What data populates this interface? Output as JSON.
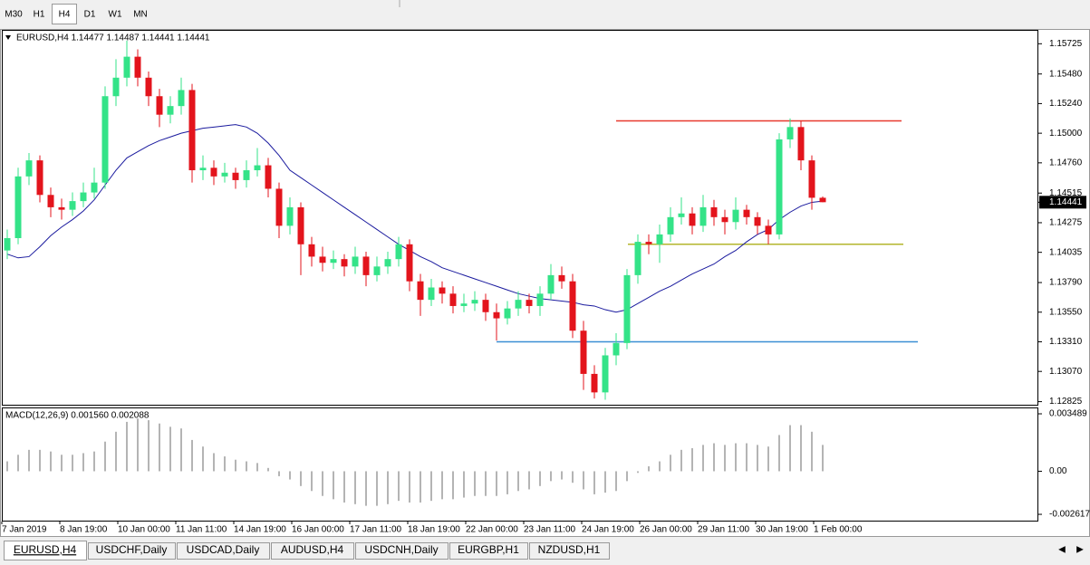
{
  "toolbar": {
    "timeframes": [
      "M30",
      "H1",
      "H4",
      "D1",
      "W1",
      "MN"
    ],
    "active": 2
  },
  "chart_data": {
    "type": "candlestick",
    "title": "EURUSD,H4  1.14477 1.14487 1.14441 1.14441",
    "up_color": "#34e388",
    "down_color": "#e3141c",
    "open": [
      1.1405,
      1.1415,
      1.1465,
      1.1478,
      1.145,
      1.144,
      1.1438,
      1.1445,
      1.1452,
      1.146,
      1.153,
      1.1545,
      1.1562,
      1.1545,
      1.153,
      1.1515,
      1.1522,
      1.1535,
      1.147,
      1.1472,
      1.1465,
      1.1468,
      1.1462,
      1.147,
      1.1474,
      1.1455,
      1.1425,
      1.144,
      1.141,
      1.14,
      1.1395,
      1.1398,
      1.1392,
      1.14,
      1.1385,
      1.1392,
      1.1398,
      1.141,
      1.138,
      1.1365,
      1.1375,
      1.137,
      1.136,
      1.1362,
      1.1365,
      1.1355,
      1.135,
      1.1358,
      1.1365,
      1.136,
      1.137,
      1.1385,
      1.138,
      1.134,
      1.1305,
      1.129,
      1.132,
      1.133,
      1.1385,
      1.1412,
      1.141,
      1.1418,
      1.1432,
      1.1435,
      1.1425,
      1.144,
      1.1432,
      1.1428,
      1.1438,
      1.1432,
      1.1425,
      1.1418,
      1.1495,
      1.1505,
      1.1478,
      1.14477
    ],
    "high": [
      1.1422,
      1.1472,
      1.1484,
      1.1482,
      1.1456,
      1.1447,
      1.1452,
      1.146,
      1.1472,
      1.1538,
      1.156,
      1.1575,
      1.1568,
      1.155,
      1.1536,
      1.153,
      1.1545,
      1.154,
      1.1482,
      1.1478,
      1.1476,
      1.1472,
      1.1478,
      1.1488,
      1.148,
      1.146,
      1.1448,
      1.1444,
      1.1416,
      1.1408,
      1.1405,
      1.1402,
      1.1408,
      1.1404,
      1.14,
      1.1404,
      1.1416,
      1.1414,
      1.1386,
      1.1382,
      1.138,
      1.1376,
      1.137,
      1.1372,
      1.137,
      1.1362,
      1.1364,
      1.1372,
      1.137,
      1.1376,
      1.1394,
      1.1392,
      1.1386,
      1.1348,
      1.1312,
      1.1326,
      1.1338,
      1.139,
      1.1418,
      1.1418,
      1.1426,
      1.144,
      1.1448,
      1.144,
      1.145,
      1.1446,
      1.1438,
      1.1448,
      1.1442,
      1.1436,
      1.143,
      1.15,
      1.1512,
      1.151,
      1.1482,
      1.14487
    ],
    "low": [
      1.1398,
      1.141,
      1.1458,
      1.1444,
      1.1432,
      1.143,
      1.1433,
      1.144,
      1.1447,
      1.1455,
      1.1522,
      1.1538,
      1.1538,
      1.1522,
      1.1505,
      1.1508,
      1.1515,
      1.146,
      1.1462,
      1.1458,
      1.146,
      1.1455,
      1.1456,
      1.1465,
      1.1448,
      1.1415,
      1.1418,
      1.1385,
      1.1392,
      1.1388,
      1.139,
      1.1384,
      1.1386,
      1.1376,
      1.138,
      1.1386,
      1.1392,
      1.1372,
      1.1352,
      1.136,
      1.1362,
      1.1354,
      1.1355,
      1.1356,
      1.1348,
      1.1332,
      1.1345,
      1.1352,
      1.1354,
      1.1352,
      1.1365,
      1.1374,
      1.1334,
      1.1292,
      1.1285,
      1.1284,
      1.1312,
      1.1325,
      1.1378,
      1.1402,
      1.1395,
      1.1412,
      1.1426,
      1.1418,
      1.142,
      1.1425,
      1.1418,
      1.1422,
      1.1426,
      1.1418,
      1.141,
      1.1414,
      1.1488,
      1.147,
      1.1438,
      1.14441
    ],
    "close": [
      1.1415,
      1.1465,
      1.1478,
      1.145,
      1.144,
      1.1438,
      1.1445,
      1.1452,
      1.146,
      1.153,
      1.1545,
      1.1562,
      1.1545,
      1.153,
      1.1515,
      1.1522,
      1.1535,
      1.147,
      1.1472,
      1.1465,
      1.1468,
      1.1462,
      1.147,
      1.1474,
      1.1455,
      1.1425,
      1.144,
      1.141,
      1.14,
      1.1395,
      1.1398,
      1.1392,
      1.14,
      1.1385,
      1.1392,
      1.1398,
      1.141,
      1.138,
      1.1365,
      1.1375,
      1.137,
      1.136,
      1.1362,
      1.1365,
      1.1355,
      1.135,
      1.1358,
      1.1365,
      1.136,
      1.137,
      1.1385,
      1.138,
      1.134,
      1.1305,
      1.129,
      1.132,
      1.133,
      1.1385,
      1.1412,
      1.141,
      1.1418,
      1.1432,
      1.1435,
      1.1425,
      1.144,
      1.1432,
      1.1428,
      1.1438,
      1.1432,
      1.1425,
      1.1418,
      1.1495,
      1.1505,
      1.1478,
      1.14477,
      1.14441
    ],
    "ma": {
      "color": "#1a1a9e",
      "values": [
        1.1402,
        1.1399,
        1.14,
        1.1408,
        1.1417,
        1.1424,
        1.143,
        1.1437,
        1.1446,
        1.1458,
        1.147,
        1.148,
        1.1485,
        1.149,
        1.1494,
        1.1497,
        1.15,
        1.1502,
        1.1504,
        1.1505,
        1.1506,
        1.1507,
        1.1505,
        1.15,
        1.1492,
        1.1482,
        1.147,
        1.1464,
        1.1458,
        1.1452,
        1.1446,
        1.144,
        1.1434,
        1.1428,
        1.1422,
        1.1416,
        1.141,
        1.1405,
        1.14,
        1.1396,
        1.1391,
        1.1388,
        1.1385,
        1.1382,
        1.1379,
        1.1376,
        1.1373,
        1.137,
        1.1368,
        1.1366,
        1.1365,
        1.1364,
        1.1363,
        1.1361,
        1.136,
        1.1357,
        1.1355,
        1.1357,
        1.1362,
        1.1367,
        1.1372,
        1.1376,
        1.1381,
        1.1386,
        1.139,
        1.1394,
        1.14,
        1.1405,
        1.1412,
        1.1418,
        1.1422,
        1.143,
        1.1436,
        1.1441,
        1.1444,
        1.1445
      ]
    },
    "levels": [
      {
        "value": 1.151,
        "color": "#e8392e"
      },
      {
        "value": 1.141,
        "color": "#b3b62c"
      },
      {
        "value": 1.1331,
        "color": "#3b8fd4"
      }
    ],
    "last_price": 1.14441,
    "ylim": [
      1.128,
      1.1583
    ],
    "yticks": [
      1.15725,
      {
        "value": 1.1548,
        "label": "1.15480"
      },
      {
        "value": 1.1524,
        "label": "1.15240"
      },
      {
        "value": 1.15,
        "label": "1.15000"
      },
      {
        "value": 1.1476,
        "label": "1.14760"
      },
      1.14515,
      1.14275,
      1.14035,
      {
        "value": 1.1379,
        "label": "1.13790"
      },
      {
        "value": 1.1355,
        "label": "1.13550"
      },
      {
        "value": 1.1331,
        "label": "1.13310"
      },
      {
        "value": 1.1307,
        "label": "1.13070"
      },
      1.12825
    ],
    "x_labels": [
      "7 Jan 2019",
      "8 Jan 19:00",
      "10 Jan 00:00",
      "11 Jan 11:00",
      "14 Jan 19:00",
      "16 Jan 00:00",
      "17 Jan 11:00",
      "18 Jan 19:00",
      "22 Jan 00:00",
      "23 Jan 11:00",
      "24 Jan 19:00",
      "26 Jan 00:00",
      "29 Jan 11:00",
      "30 Jan 19:00",
      "1 Feb 00:00"
    ],
    "macd": {
      "label": "MACD(12,26,9) 0.001560 0.002088",
      "color": "#b4b4b4",
      "values": [
        0.0006,
        0.001,
        0.0013,
        0.0013,
        0.0012,
        0.001,
        0.001,
        0.0011,
        0.0012,
        0.0018,
        0.0024,
        0.003,
        0.0032,
        0.0031,
        0.0029,
        0.0027,
        0.0026,
        0.0019,
        0.0015,
        0.0011,
        0.0009,
        0.0007,
        0.0006,
        0.0005,
        0.0002,
        -0.0003,
        -0.0005,
        -0.0009,
        -0.0012,
        -0.0015,
        -0.0017,
        -0.0019,
        -0.002,
        -0.0021,
        -0.0021,
        -0.002,
        -0.0018,
        -0.0019,
        -0.0019,
        -0.0018,
        -0.0017,
        -0.0017,
        -0.0016,
        -0.0015,
        -0.0015,
        -0.0015,
        -0.0014,
        -0.0012,
        -0.0011,
        -0.0009,
        -0.0006,
        -0.0005,
        -0.0007,
        -0.0011,
        -0.0014,
        -0.0013,
        -0.0012,
        -0.0006,
        -0.0001,
        0.0003,
        0.0006,
        0.001,
        0.0013,
        0.0014,
        0.0016,
        0.0017,
        0.0016,
        0.0017,
        0.0017,
        0.0016,
        0.0015,
        0.0022,
        0.0028,
        0.0028,
        0.0024,
        0.0016
      ],
      "ylim": [
        -0.003,
        0.00382
      ],
      "yticks": [
        0.003489,
        {
          "value": 0,
          "label": "0.00"
        },
        -0.002617
      ]
    }
  },
  "tabs": [
    "EURUSD,H4",
    "USDCHF,Daily",
    "USDCAD,Daily",
    "AUDUSD,H4",
    "USDCNH,Daily",
    "EURGBP,H1",
    "NZDUSD,H1"
  ]
}
